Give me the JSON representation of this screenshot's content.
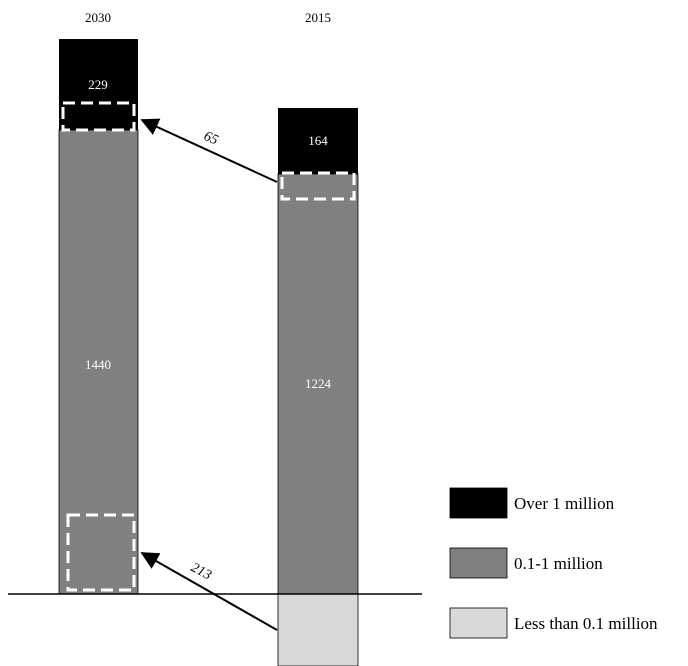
{
  "chart_data": {
    "type": "bar",
    "stacked": true,
    "categories": [
      "2030",
      "2015"
    ],
    "series": [
      {
        "name": "Over 1 million",
        "color": "#000000",
        "values": [
          229,
          164
        ]
      },
      {
        "name": "0.1-1 million",
        "color": "#808080",
        "values": [
          1440,
          1224
        ]
      },
      {
        "name": "Less than 0.1 million",
        "color": "#d9d9d9",
        "values": [
          null,
          null
        ]
      }
    ],
    "segment_labels": [
      {
        "category": "2030",
        "series": "Over 1 million",
        "text": "229"
      },
      {
        "category": "2030",
        "series": "0.1-1 million",
        "text": "1440"
      },
      {
        "category": "2015",
        "series": "Over 1 million",
        "text": "164"
      },
      {
        "category": "2015",
        "series": "0.1-1 million",
        "text": "1224"
      }
    ],
    "flows": [
      {
        "label": "65",
        "from": "2015 0.1-1 million",
        "to": "2030 Over 1 million"
      },
      {
        "label": "213",
        "from": "2015 Less than 0.1 million",
        "to": "2030 0.1-1 million"
      }
    ],
    "legend": {
      "position": "right",
      "items": [
        "Over 1 million",
        "0.1-1 million",
        "Less than 0.1 million"
      ]
    },
    "title": "",
    "xlabel": "",
    "ylabel": "",
    "grid": false
  }
}
